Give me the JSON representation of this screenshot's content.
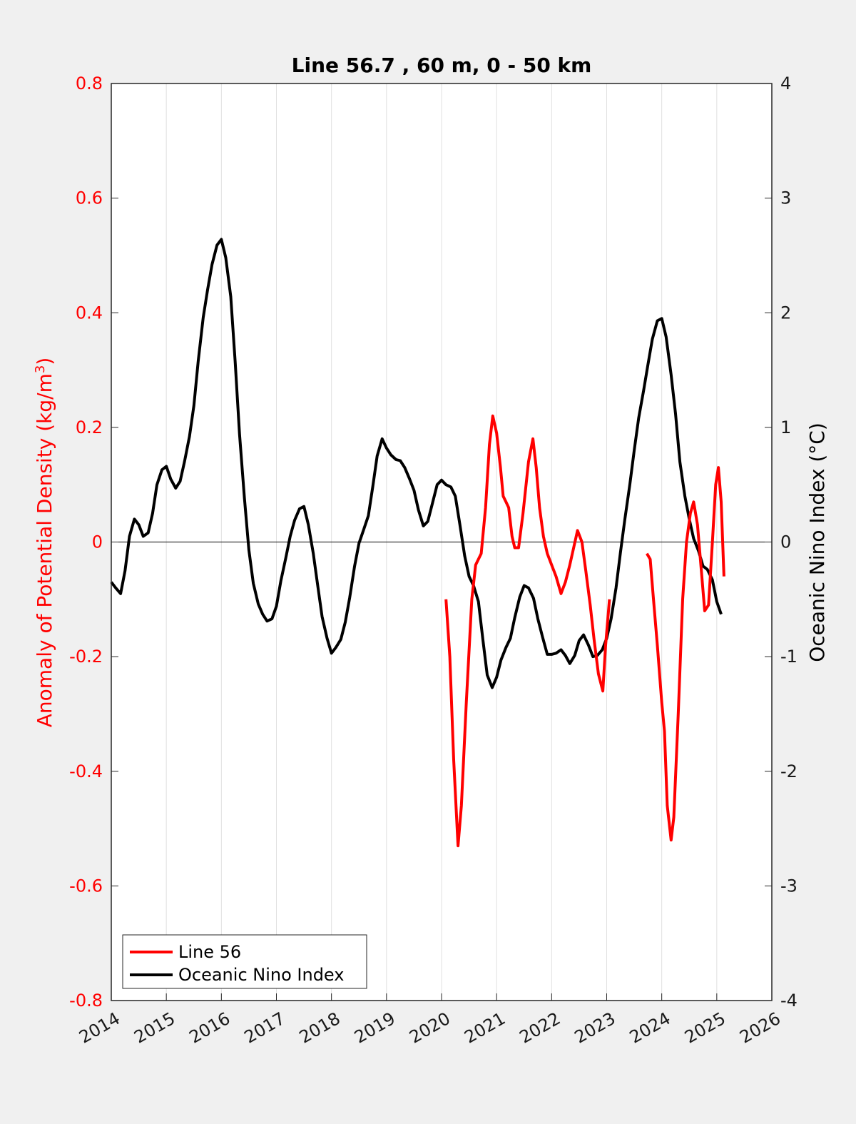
{
  "chart_data": {
    "type": "line",
    "title": "Line 56.7 , 60 m, 0 - 50 km",
    "xlabel": "",
    "ylabel_left_prefix": "Anomaly of Potential Density (kg/m",
    "ylabel_left_sup": "3",
    "ylabel_left_suffix": ")",
    "ylabel_right": "Oceanic Nino Index (°C)",
    "xlim": [
      2014,
      2026
    ],
    "ylim_left": [
      -0.8,
      0.8
    ],
    "ylim_right": [
      -4,
      4
    ],
    "x_ticks": [
      "2014",
      "2015",
      "2016",
      "2017",
      "2018",
      "2019",
      "2020",
      "2021",
      "2022",
      "2023",
      "2024",
      "2025",
      "2026"
    ],
    "y_ticks_left": [
      "0.8",
      "0.6",
      "0.4",
      "0.2",
      "0",
      "-0.2",
      "-0.4",
      "-0.6",
      "-0.8"
    ],
    "y_ticks_right": [
      "4",
      "3",
      "2",
      "1",
      "0",
      "-1",
      "-2",
      "-3",
      "-4"
    ],
    "grid": "vertical lines at each year",
    "zero_line": true,
    "legend_position": "bottom-left",
    "colors": {
      "line56": "#ff0000",
      "oni": "#000000"
    },
    "series": [
      {
        "name": "Line 56",
        "axis": "left",
        "segments": [
          [
            [
              2020.08,
              -0.1
            ],
            [
              2020.15,
              -0.2
            ],
            [
              2020.22,
              -0.38
            ],
            [
              2020.3,
              -0.53
            ],
            [
              2020.36,
              -0.46
            ],
            [
              2020.45,
              -0.28
            ],
            [
              2020.55,
              -0.1
            ],
            [
              2020.62,
              -0.04
            ],
            [
              2020.72,
              -0.02
            ],
            [
              2020.8,
              0.06
            ],
            [
              2020.87,
              0.17
            ],
            [
              2020.93,
              0.22
            ],
            [
              2021.0,
              0.19
            ],
            [
              2021.07,
              0.13
            ],
            [
              2021.12,
              0.08
            ],
            [
              2021.17,
              0.07
            ],
            [
              2021.22,
              0.06
            ],
            [
              2021.28,
              0.01
            ],
            [
              2021.33,
              -0.01
            ],
            [
              2021.4,
              -0.01
            ],
            [
              2021.48,
              0.05
            ],
            [
              2021.58,
              0.14
            ],
            [
              2021.66,
              0.18
            ],
            [
              2021.72,
              0.13
            ],
            [
              2021.78,
              0.06
            ],
            [
              2021.85,
              0.01
            ],
            [
              2021.92,
              -0.02
            ],
            [
              2022.0,
              -0.04
            ],
            [
              2022.08,
              -0.06
            ],
            [
              2022.17,
              -0.09
            ],
            [
              2022.25,
              -0.07
            ],
            [
              2022.33,
              -0.04
            ],
            [
              2022.4,
              -0.01
            ],
            [
              2022.47,
              0.02
            ],
            [
              2022.55,
              0.0
            ],
            [
              2022.62,
              -0.05
            ],
            [
              2022.7,
              -0.11
            ],
            [
              2022.77,
              -0.17
            ],
            [
              2022.85,
              -0.23
            ],
            [
              2022.93,
              -0.26
            ],
            [
              2022.98,
              -0.18
            ],
            [
              2023.05,
              -0.1
            ]
          ],
          [
            [
              2023.73,
              -0.02
            ],
            [
              2023.79,
              -0.03
            ],
            [
              2023.85,
              -0.1
            ],
            [
              2023.92,
              -0.18
            ],
            [
              2024.0,
              -0.28
            ],
            [
              2024.05,
              -0.33
            ],
            [
              2024.1,
              -0.46
            ],
            [
              2024.17,
              -0.52
            ],
            [
              2024.22,
              -0.48
            ],
            [
              2024.3,
              -0.3
            ],
            [
              2024.38,
              -0.1
            ],
            [
              2024.45,
              0.0
            ],
            [
              2024.52,
              0.05
            ],
            [
              2024.58,
              0.07
            ],
            [
              2024.65,
              0.03
            ],
            [
              2024.72,
              -0.05
            ],
            [
              2024.78,
              -0.12
            ],
            [
              2024.85,
              -0.11
            ],
            [
              2024.92,
              0.0
            ],
            [
              2024.98,
              0.1
            ],
            [
              2025.03,
              0.13
            ],
            [
              2025.08,
              0.07
            ],
            [
              2025.13,
              -0.06
            ]
          ]
        ]
      },
      {
        "name": "Oceanic Nino Index",
        "axis": "right",
        "points": [
          [
            2014.0,
            -0.35
          ],
          [
            2014.08,
            -0.4
          ],
          [
            2014.17,
            -0.45
          ],
          [
            2014.25,
            -0.25
          ],
          [
            2014.33,
            0.05
          ],
          [
            2014.42,
            0.2
          ],
          [
            2014.5,
            0.15
          ],
          [
            2014.58,
            0.05
          ],
          [
            2014.67,
            0.08
          ],
          [
            2014.75,
            0.25
          ],
          [
            2014.83,
            0.5
          ],
          [
            2014.92,
            0.63
          ],
          [
            2015.0,
            0.66
          ],
          [
            2015.08,
            0.55
          ],
          [
            2015.17,
            0.47
          ],
          [
            2015.25,
            0.53
          ],
          [
            2015.33,
            0.7
          ],
          [
            2015.42,
            0.92
          ],
          [
            2015.5,
            1.19
          ],
          [
            2015.58,
            1.58
          ],
          [
            2015.67,
            1.96
          ],
          [
            2015.75,
            2.2
          ],
          [
            2015.83,
            2.42
          ],
          [
            2015.92,
            2.59
          ],
          [
            2016.0,
            2.64
          ],
          [
            2016.08,
            2.48
          ],
          [
            2016.17,
            2.14
          ],
          [
            2016.25,
            1.58
          ],
          [
            2016.33,
            0.94
          ],
          [
            2016.42,
            0.38
          ],
          [
            2016.5,
            -0.07
          ],
          [
            2016.58,
            -0.36
          ],
          [
            2016.67,
            -0.54
          ],
          [
            2016.75,
            -0.63
          ],
          [
            2016.83,
            -0.69
          ],
          [
            2016.92,
            -0.67
          ],
          [
            2017.0,
            -0.56
          ],
          [
            2017.08,
            -0.34
          ],
          [
            2017.17,
            -0.14
          ],
          [
            2017.25,
            0.05
          ],
          [
            2017.33,
            0.19
          ],
          [
            2017.42,
            0.29
          ],
          [
            2017.5,
            0.31
          ],
          [
            2017.58,
            0.15
          ],
          [
            2017.67,
            -0.1
          ],
          [
            2017.75,
            -0.38
          ],
          [
            2017.83,
            -0.65
          ],
          [
            2017.92,
            -0.84
          ],
          [
            2018.0,
            -0.97
          ],
          [
            2018.08,
            -0.92
          ],
          [
            2018.17,
            -0.85
          ],
          [
            2018.25,
            -0.7
          ],
          [
            2018.33,
            -0.49
          ],
          [
            2018.42,
            -0.21
          ],
          [
            2018.5,
            -0.01
          ],
          [
            2018.58,
            0.1
          ],
          [
            2018.67,
            0.23
          ],
          [
            2018.75,
            0.48
          ],
          [
            2018.83,
            0.75
          ],
          [
            2018.92,
            0.9
          ],
          [
            2019.0,
            0.82
          ],
          [
            2019.08,
            0.76
          ],
          [
            2019.17,
            0.72
          ],
          [
            2019.25,
            0.71
          ],
          [
            2019.33,
            0.65
          ],
          [
            2019.42,
            0.55
          ],
          [
            2019.5,
            0.45
          ],
          [
            2019.58,
            0.28
          ],
          [
            2019.67,
            0.14
          ],
          [
            2019.75,
            0.18
          ],
          [
            2019.83,
            0.33
          ],
          [
            2019.92,
            0.5
          ],
          [
            2020.0,
            0.54
          ],
          [
            2020.08,
            0.5
          ],
          [
            2020.17,
            0.48
          ],
          [
            2020.25,
            0.4
          ],
          [
            2020.33,
            0.16
          ],
          [
            2020.42,
            -0.12
          ],
          [
            2020.5,
            -0.3
          ],
          [
            2020.58,
            -0.38
          ],
          [
            2020.67,
            -0.52
          ],
          [
            2020.75,
            -0.85
          ],
          [
            2020.83,
            -1.16
          ],
          [
            2020.92,
            -1.27
          ],
          [
            2021.0,
            -1.18
          ],
          [
            2021.08,
            -1.03
          ],
          [
            2021.17,
            -0.92
          ],
          [
            2021.25,
            -0.84
          ],
          [
            2021.33,
            -0.66
          ],
          [
            2021.42,
            -0.48
          ],
          [
            2021.5,
            -0.38
          ],
          [
            2021.58,
            -0.4
          ],
          [
            2021.67,
            -0.49
          ],
          [
            2021.75,
            -0.67
          ],
          [
            2021.83,
            -0.82
          ],
          [
            2021.92,
            -0.98
          ],
          [
            2022.0,
            -0.98
          ],
          [
            2022.08,
            -0.97
          ],
          [
            2022.17,
            -0.94
          ],
          [
            2022.25,
            -0.99
          ],
          [
            2022.33,
            -1.06
          ],
          [
            2022.42,
            -0.99
          ],
          [
            2022.5,
            -0.86
          ],
          [
            2022.58,
            -0.81
          ],
          [
            2022.67,
            -0.9
          ],
          [
            2022.75,
            -1.0
          ],
          [
            2022.83,
            -0.99
          ],
          [
            2022.92,
            -0.94
          ],
          [
            2023.0,
            -0.84
          ],
          [
            2023.08,
            -0.67
          ],
          [
            2023.17,
            -0.4
          ],
          [
            2023.25,
            -0.09
          ],
          [
            2023.33,
            0.2
          ],
          [
            2023.42,
            0.5
          ],
          [
            2023.5,
            0.8
          ],
          [
            2023.58,
            1.08
          ],
          [
            2023.67,
            1.32
          ],
          [
            2023.75,
            1.55
          ],
          [
            2023.83,
            1.77
          ],
          [
            2023.92,
            1.93
          ],
          [
            2024.0,
            1.95
          ],
          [
            2024.08,
            1.79
          ],
          [
            2024.17,
            1.46
          ],
          [
            2024.25,
            1.12
          ],
          [
            2024.33,
            0.7
          ],
          [
            2024.42,
            0.4
          ],
          [
            2024.5,
            0.2
          ],
          [
            2024.58,
            0.03
          ],
          [
            2024.67,
            -0.08
          ],
          [
            2024.75,
            -0.21
          ],
          [
            2024.83,
            -0.24
          ],
          [
            2024.92,
            -0.33
          ],
          [
            2025.0,
            -0.52
          ],
          [
            2025.08,
            -0.63
          ]
        ]
      }
    ],
    "legend": [
      "Line 56",
      "Oceanic Nino Index"
    ]
  }
}
